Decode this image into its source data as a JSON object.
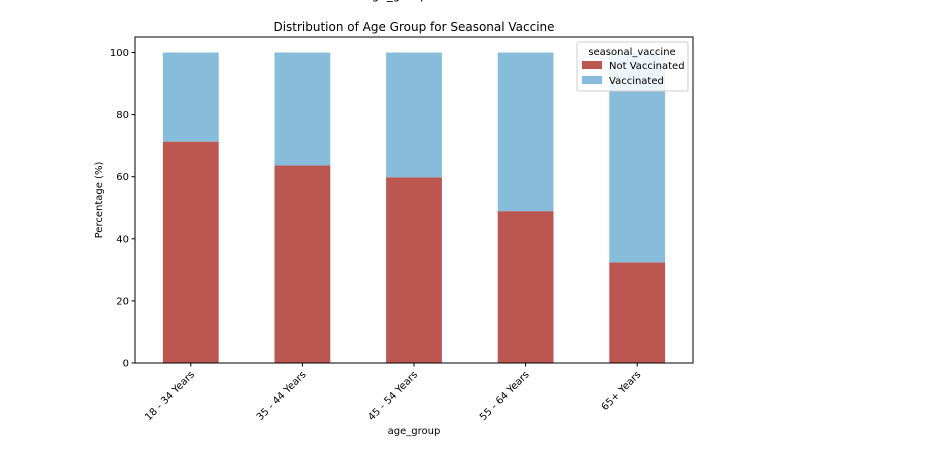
{
  "chart_data": {
    "type": "bar",
    "stacked": true,
    "title": "Distribution of Age Group for Seasonal Vaccine",
    "top_cut_label": "age_group",
    "xlabel": "age_group",
    "ylabel": "Percentage (%)",
    "categories": [
      "18 - 34 Years",
      "35 - 44 Years",
      "45 - 54 Years",
      "55 - 64 Years",
      "65+ Years"
    ],
    "series": [
      {
        "name": "Not Vaccinated",
        "color": "#bb5651",
        "values": [
          71.3,
          63.6,
          59.8,
          48.9,
          32.4
        ]
      },
      {
        "name": "Vaccinated",
        "color": "#87bdda",
        "values": [
          28.7,
          36.4,
          40.2,
          51.1,
          67.6
        ]
      }
    ],
    "ylim": [
      0,
      105
    ],
    "yticks": [
      0,
      20,
      40,
      60,
      80,
      100
    ],
    "legend": {
      "title": "seasonal_vaccine",
      "placement": "top-right"
    },
    "grid": false
  }
}
